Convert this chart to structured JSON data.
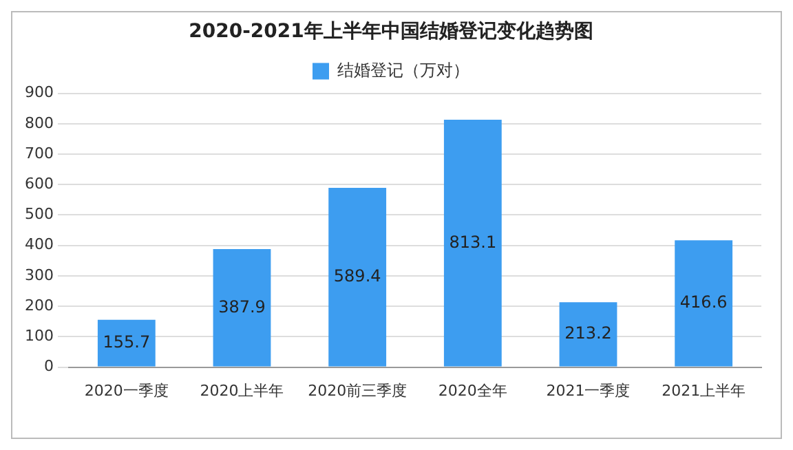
{
  "chart_data": {
    "type": "bar",
    "title": "2020-2021年上半年中国结婚登记变化趋势图",
    "categories": [
      "2020一季度",
      "2020上半年",
      "2020前三季度",
      "2020全年",
      "2021一季度",
      "2021上半年"
    ],
    "series": [
      {
        "name": "结婚登记（万对）",
        "color": "#3d9df0",
        "values": [
          155.7,
          387.9,
          589.4,
          813.1,
          213.2,
          416.6
        ]
      }
    ],
    "ylim": [
      0,
      900
    ],
    "yticks": [
      0,
      100,
      200,
      300,
      400,
      500,
      600,
      700,
      800,
      900
    ],
    "grid": "y",
    "legend": "top",
    "data_labels": true
  }
}
